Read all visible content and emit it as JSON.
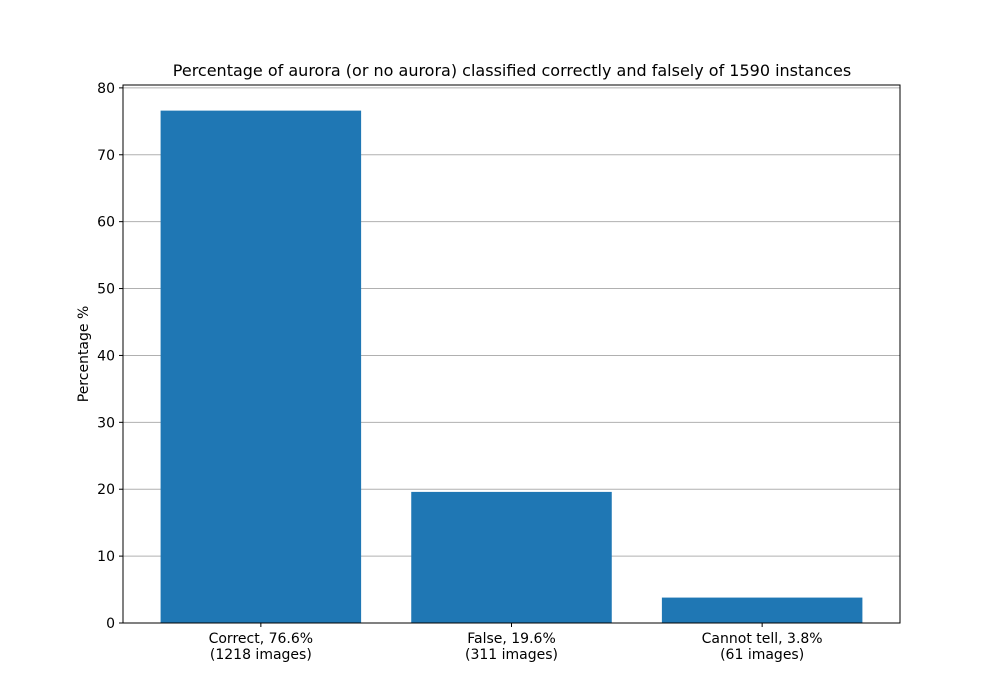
{
  "chart_data": {
    "type": "bar",
    "title": "Percentage of aurora (or no aurora) classified correctly and falsely of 1590 instances",
    "y_label": "Percentage %",
    "categories": [
      "Correct, 76.6%\n(1218 images)",
      "False, 19.6%\n(311 images)",
      "Cannot tell, 3.8%\n(61 images)"
    ],
    "values": [
      76.6,
      19.6,
      3.8
    ],
    "color": "#1f77b4",
    "ylim": [
      0,
      80.43
    ],
    "yticks": [
      0,
      10,
      20,
      30,
      40,
      50,
      60,
      70,
      80
    ],
    "grid": true
  }
}
